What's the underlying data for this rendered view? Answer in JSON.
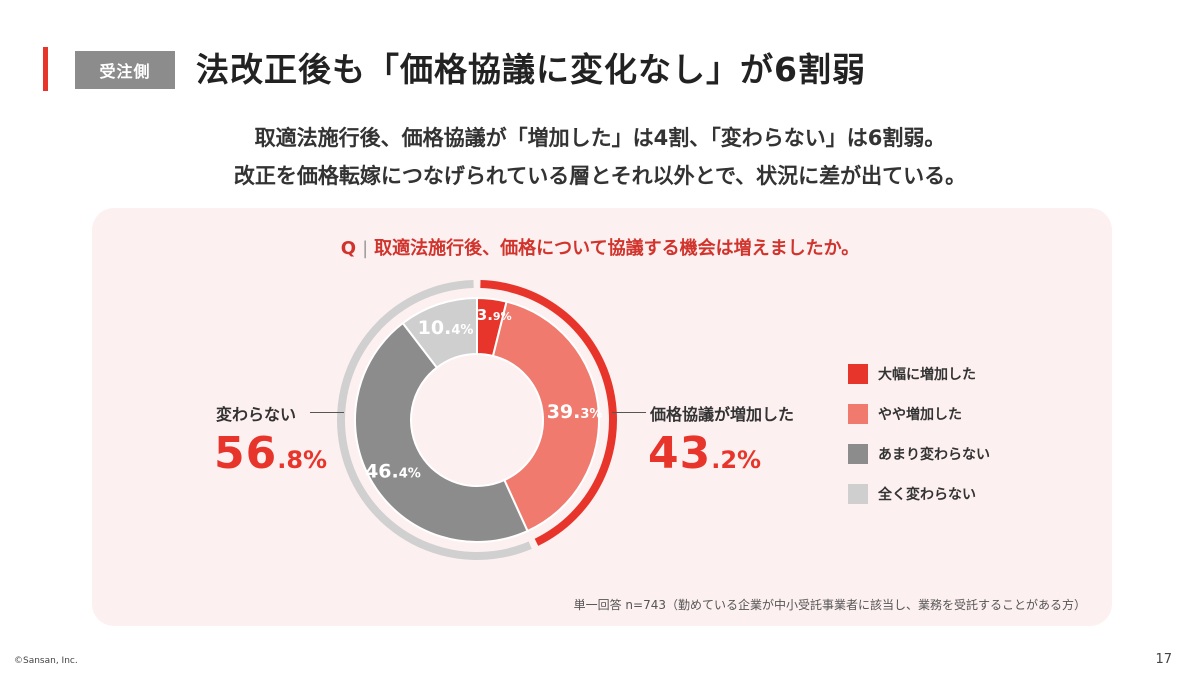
{
  "header": {
    "tag": "受注側",
    "title": "法改正後も「価格協議に変化なし」が6割弱"
  },
  "subtitle": {
    "line1": "取適法施行後、価格協議が「増加した」は4割、「変わらない」は6割弱。",
    "line2": "改正を価格転嫁につなげられている層とそれ以外とで、状況に差が出ている。"
  },
  "question": {
    "prefix": "Q",
    "text": "取適法施行後、価格について協議する機会は増えましたか。"
  },
  "summary": {
    "left": {
      "label": "変わらない",
      "num": "56",
      "unit": ".8%"
    },
    "right": {
      "label": "価格協議が増加した",
      "num": "43",
      "unit": ".2%"
    }
  },
  "note": "単一回答 n=743（勤めている企業が中小受託事業者に該当し、業務を受託することがある方）",
  "footer": {
    "copyright": "©Sansan, Inc.",
    "page": "17"
  },
  "chart_data": {
    "type": "pie",
    "variant": "donut",
    "question": "取適法施行後、価格について協議する機会は増えましたか。",
    "slices": [
      {
        "name": "大幅に増加した",
        "value": 3.9,
        "label_num": "3.",
        "label_unit": "9%",
        "color": "#e8352b"
      },
      {
        "name": "やや増加した",
        "value": 39.3,
        "label_num": "39.",
        "label_unit": "3%",
        "color": "#f07a6e"
      },
      {
        "name": "あまり変わらない",
        "value": 46.4,
        "label_num": "46.",
        "label_unit": "4%",
        "color": "#8c8c8c"
      },
      {
        "name": "全く変わらない",
        "value": 10.4,
        "label_num": "10.",
        "label_unit": "4%",
        "color": "#cfcfcf"
      }
    ],
    "groups": [
      {
        "name": "価格協議が増加した",
        "value": 43.2,
        "color": "#e8352b"
      },
      {
        "name": "変わらない",
        "value": 56.8,
        "color": "#d0d0d0"
      }
    ],
    "legend_position": "right",
    "n": 743
  }
}
